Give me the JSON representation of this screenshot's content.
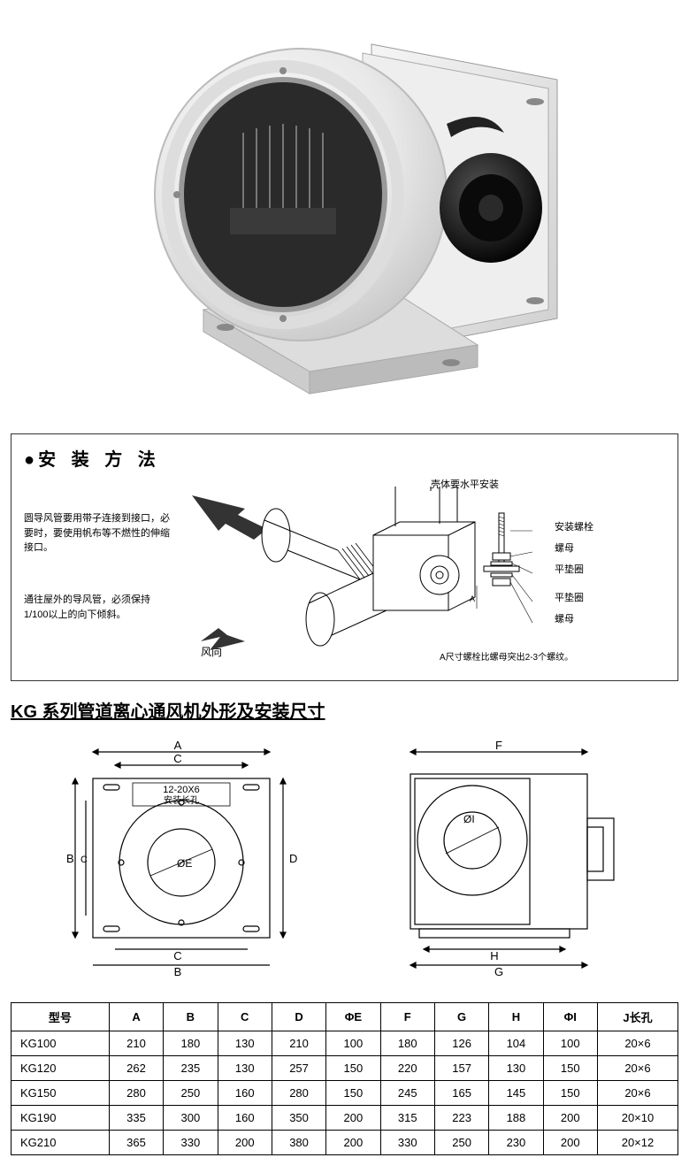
{
  "install": {
    "title": "安 装  方 法",
    "note_duct": "圆导风管要用带子连接到接口，必要时，要使用帆布等不燃性的伸缩接口。",
    "note_slope": "通往屋外的导风管，必须保持1/100以上的向下倾斜。",
    "wind_label": "风向",
    "label_horizontal": "壳体要水平安装",
    "label_bolt": "安装螺栓",
    "label_nut1": "螺母",
    "label_washer1": "平垫圈",
    "label_washer2": "平垫圈",
    "label_nut2": "螺母",
    "note_A": "A尺寸螺栓比螺母突出2-3个螺纹。"
  },
  "dimensions": {
    "title": "KG 系列管道离心通风机外形及安装尺寸",
    "drawing_slot_label": "12-20X6",
    "drawing_slot_sub": "安装长孔",
    "columns": [
      "型号",
      "A",
      "B",
      "C",
      "D",
      "ΦE",
      "F",
      "G",
      "H",
      "ΦI",
      "J长孔"
    ],
    "rows": [
      [
        "KG100",
        "210",
        "180",
        "130",
        "210",
        "100",
        "180",
        "126",
        "104",
        "100",
        "20×6"
      ],
      [
        "KG120",
        "262",
        "235",
        "130",
        "257",
        "150",
        "220",
        "157",
        "130",
        "150",
        "20×6"
      ],
      [
        "KG150",
        "280",
        "250",
        "160",
        "280",
        "150",
        "245",
        "165",
        "145",
        "150",
        "20×6"
      ],
      [
        "KG190",
        "335",
        "300",
        "160",
        "350",
        "200",
        "315",
        "223",
        "188",
        "200",
        "20×10"
      ],
      [
        "KG210",
        "365",
        "330",
        "200",
        "380",
        "200",
        "330",
        "250",
        "230",
        "200",
        "20×12"
      ]
    ]
  },
  "style": {
    "border_color": "#000000",
    "text_color": "#000000",
    "background": "#ffffff"
  }
}
